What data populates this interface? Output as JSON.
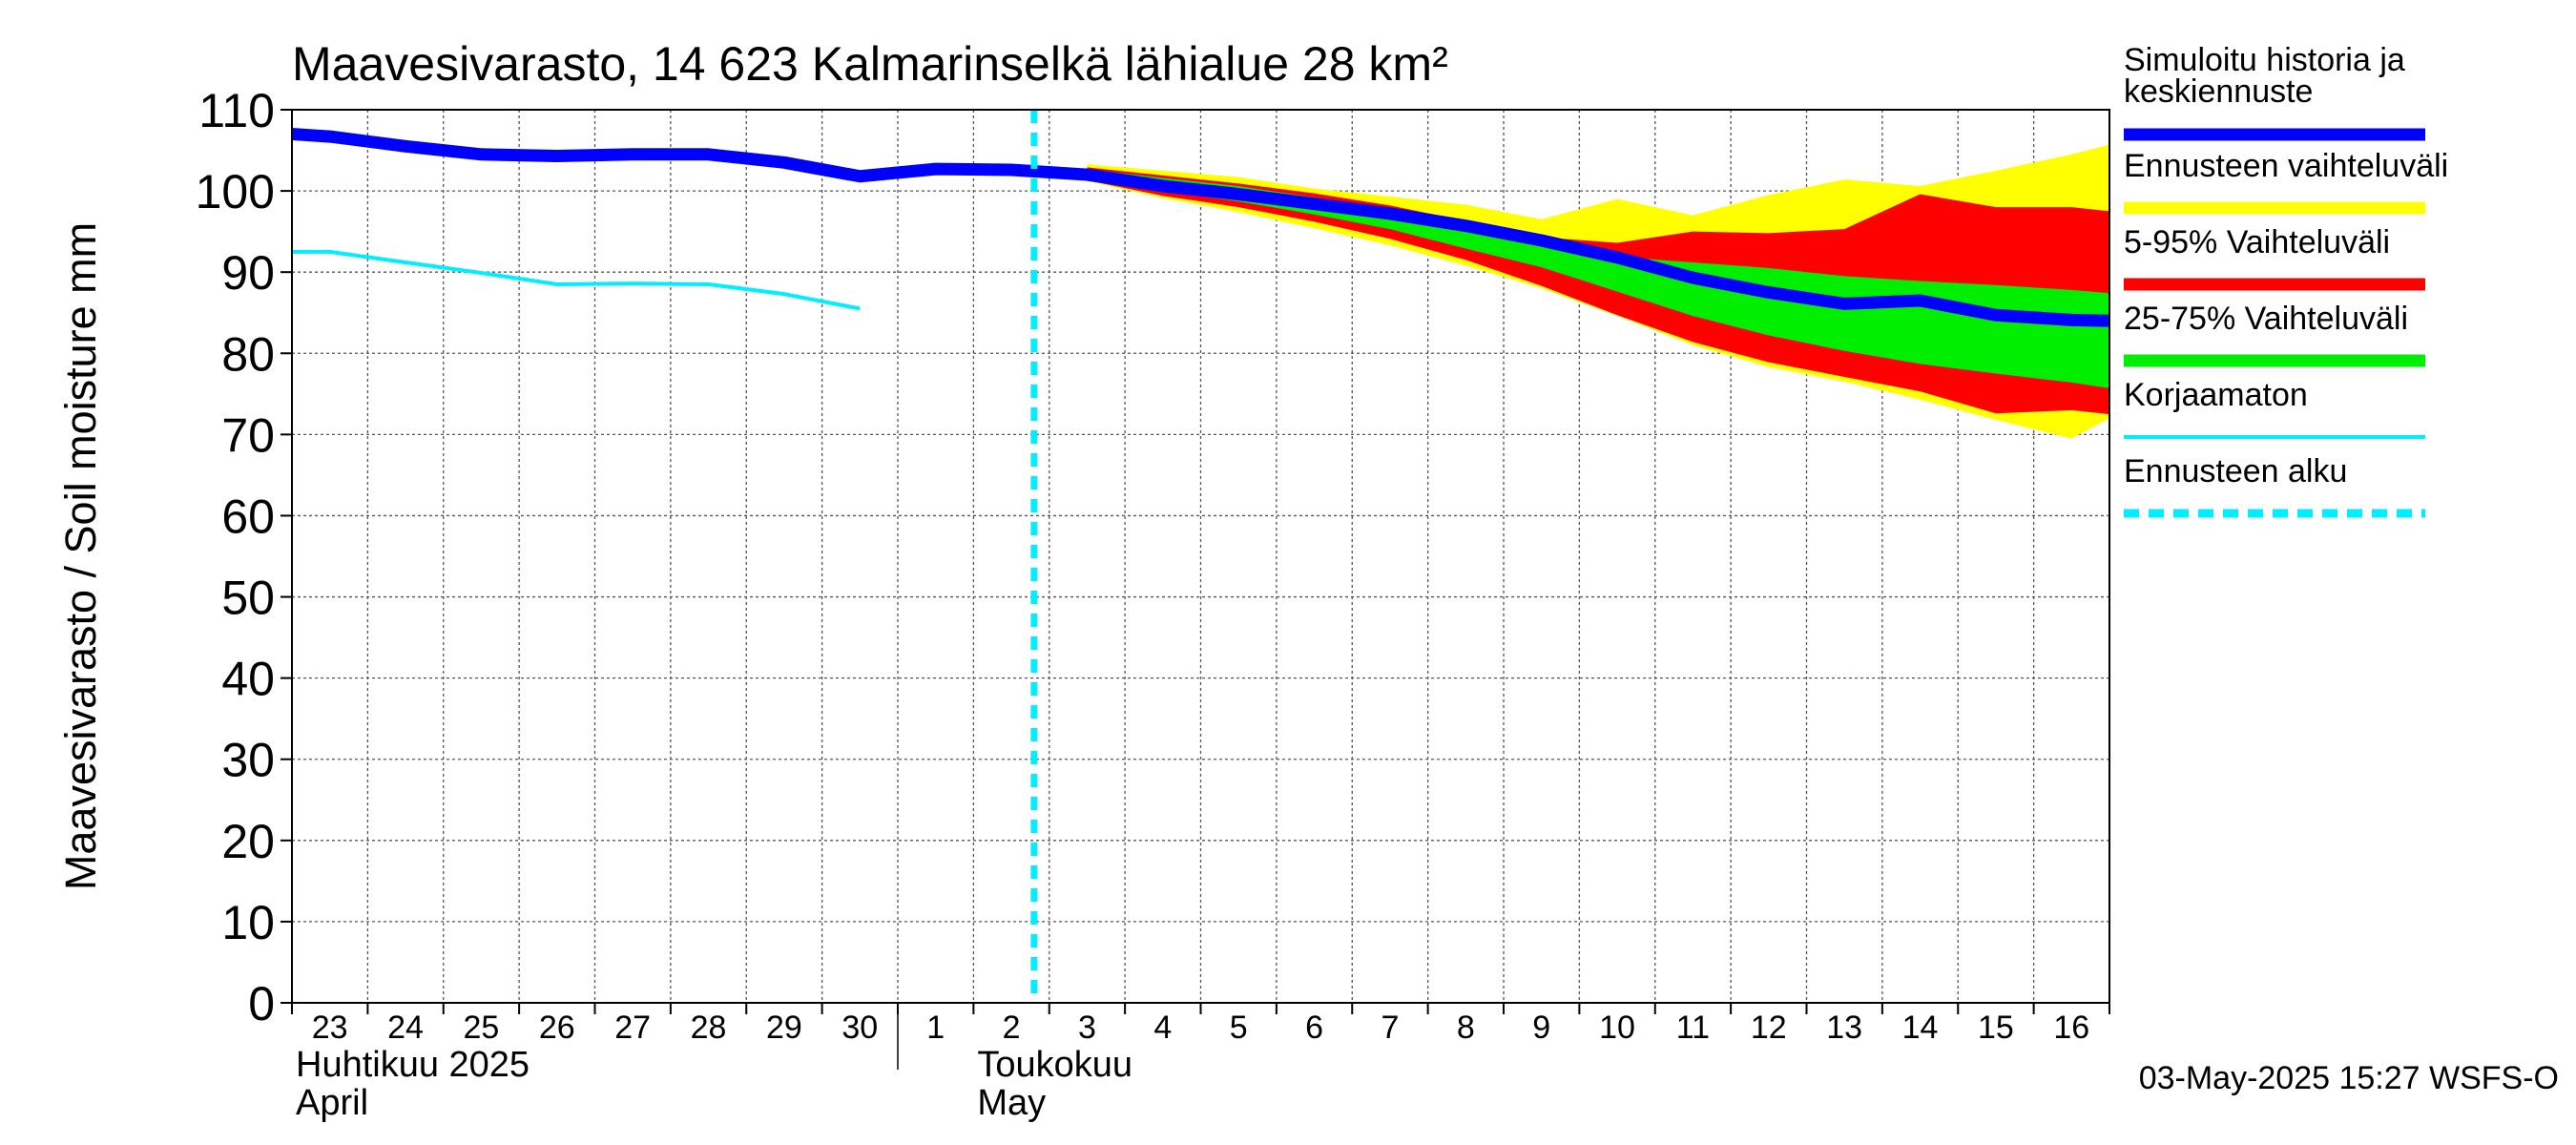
{
  "chart_data": {
    "type": "line",
    "title": "Maavesivarasto, 14 623 Kalmarinselkä lähialue 28 km²",
    "ylabel": "Maavesivarasto / Soil moisture   mm",
    "ylim": [
      0,
      110
    ],
    "yticks": [
      0,
      10,
      20,
      30,
      40,
      50,
      60,
      70,
      80,
      90,
      100,
      110
    ],
    "xlim": [
      -0.5,
      23.5
    ],
    "day_labels": [
      "23",
      "24",
      "25",
      "26",
      "27",
      "28",
      "29",
      "30",
      "1",
      "2",
      "3",
      "4",
      "5",
      "6",
      "7",
      "8",
      "9",
      "10",
      "11",
      "12",
      "13",
      "14",
      "15",
      "16"
    ],
    "month_labels": [
      {
        "line1": "Huhtikuu  2025",
        "line2": "April",
        "x": -0.5
      },
      {
        "line1": "Toukokuu",
        "line2": "May",
        "x": 8.5
      }
    ],
    "month_boundary_x": 7.5,
    "forecast_start_x": 9.3,
    "series": [
      {
        "name": "Ennusteen vaihteluväli",
        "kind": "band",
        "color": "#ffff00",
        "x": [
          10,
          11,
          12,
          13,
          14,
          15,
          16,
          17,
          18,
          19,
          20,
          21,
          22,
          23,
          23.5
        ],
        "upper": [
          103.3,
          102.5,
          101.7,
          100.3,
          99.3,
          98.3,
          96.5,
          99,
          97,
          99.5,
          101.4,
          100.6,
          102.5,
          104.5,
          105.7
        ],
        "lower": [
          101.2,
          99.1,
          97.4,
          95.4,
          93.3,
          90.8,
          88.0,
          84.6,
          81.0,
          78.3,
          76.5,
          74.3,
          71.8,
          69.5,
          72
        ]
      },
      {
        "name": "5-95% Vaihteluväli",
        "kind": "band",
        "color": "#ff0000",
        "x": [
          10,
          11,
          12,
          13,
          14,
          15,
          16,
          17,
          18,
          19,
          20,
          21,
          22,
          23,
          23.5
        ],
        "upper": [
          102.9,
          101.9,
          100.9,
          99.7,
          98.2,
          96.3,
          94.3,
          93.6,
          95,
          94.8,
          95.3,
          99.6,
          98,
          98,
          97.5
        ],
        "lower": [
          101.3,
          99.4,
          98,
          96.2,
          94.1,
          91.5,
          88.3,
          84.7,
          81.4,
          78.9,
          77.1,
          75.3,
          72.6,
          73,
          72.5
        ]
      },
      {
        "name": "25-75% Vaihteluväli",
        "kind": "band",
        "color": "#00ee00",
        "x": [
          10,
          11,
          12,
          13,
          14,
          15,
          16,
          17,
          18,
          19,
          20,
          21,
          22,
          23,
          23.5
        ],
        "upper": [
          102.7,
          101.6,
          100.6,
          99.2,
          97.8,
          95.8,
          93.6,
          91.9,
          91.2,
          90.5,
          89.5,
          88.9,
          88.4,
          87.8,
          87.4
        ],
        "lower": [
          101.5,
          100,
          98.7,
          97.1,
          95.3,
          92.9,
          90.6,
          87.6,
          84.6,
          82.2,
          80.3,
          78.7,
          77.5,
          76.4,
          75.7
        ]
      },
      {
        "name": "Korjaamaton",
        "kind": "line",
        "color": "#00eeff",
        "width": 4,
        "x": [
          -0.5,
          0,
          1,
          2,
          3,
          4,
          5,
          6,
          7
        ],
        "y": [
          92.5,
          92.5,
          91.2,
          89.9,
          88.5,
          88.6,
          88.5,
          87.3,
          85.5
        ]
      },
      {
        "name": "Simuloitu historia ja keskiennuste",
        "kind": "line",
        "color": "#0000ff",
        "width": 13,
        "x": [
          -0.5,
          0,
          1,
          2,
          3,
          4,
          5,
          6,
          7,
          8,
          9,
          10,
          11,
          12,
          13,
          14,
          15,
          16,
          17,
          18,
          19,
          20,
          21,
          22,
          23,
          23.5
        ],
        "y": [
          107,
          106.7,
          105.5,
          104.5,
          104.3,
          104.5,
          104.5,
          103.5,
          101.8,
          102.7,
          102.6,
          102,
          100.6,
          99.6,
          98.4,
          97.2,
          95.7,
          93.9,
          91.8,
          89.3,
          87.5,
          86.1,
          86.5,
          84.7,
          84.1,
          84
        ]
      }
    ],
    "legend": [
      {
        "label": "Simuloitu historia ja\nkeskiennuste",
        "color": "#0000ff",
        "style": "thick"
      },
      {
        "label": "Ennusteen vaihteluväli",
        "color": "#ffff00",
        "style": "thick"
      },
      {
        "label": "5-95% Vaihteluväli",
        "color": "#ff0000",
        "style": "thick"
      },
      {
        "label": "25-75% Vaihteluväli",
        "color": "#00ee00",
        "style": "thick"
      },
      {
        "label": "Korjaamaton",
        "color": "#00eeff",
        "style": "thin"
      },
      {
        "label": "Ennusteen alku",
        "color": "#00eeff",
        "style": "dashed"
      }
    ],
    "legend_position": "right",
    "grid": true,
    "timestamp": "03-May-2025 15:27 WSFS-O"
  }
}
